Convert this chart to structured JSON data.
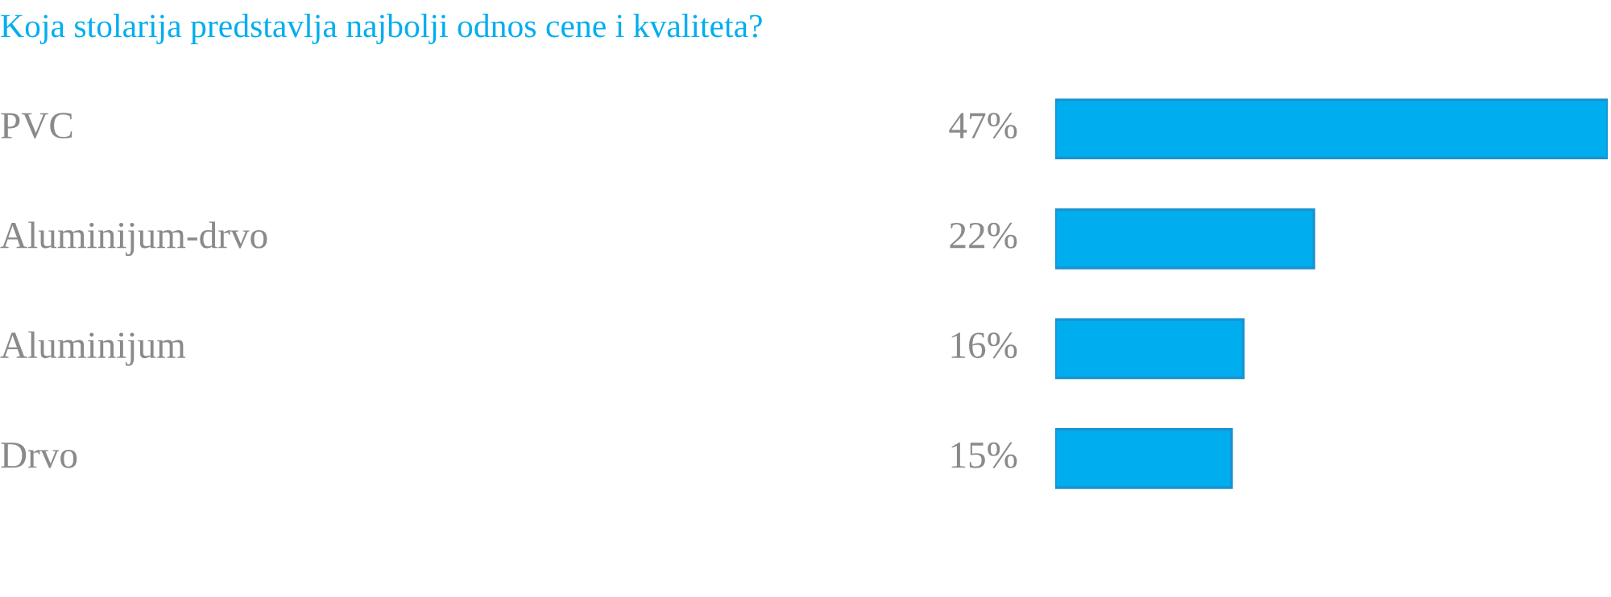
{
  "chart_data": {
    "type": "bar",
    "orientation": "horizontal",
    "relative": false,
    "title": "Koja stolarija predstavlja najbolji odnos cene i kvaliteta?",
    "categories": [
      "PVC",
      "Aluminijum-drvo",
      "Aluminijum",
      "Drvo"
    ],
    "values": [
      47,
      22,
      16,
      15
    ],
    "value_labels": [
      "47%",
      "22%",
      "16%",
      "15%"
    ],
    "color": "#00aeef"
  }
}
